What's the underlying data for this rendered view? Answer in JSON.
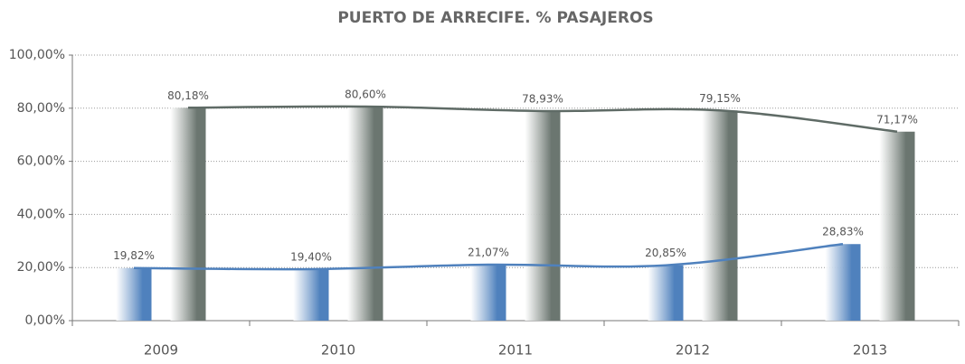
{
  "chart_data": {
    "type": "bar",
    "title": "PUERTO DE ARRECIFE. % PASAJEROS",
    "categories": [
      "2009",
      "2010",
      "2011",
      "2012",
      "2013"
    ],
    "series": [
      {
        "color": "#4f81bd",
        "values": [
          19.82,
          19.4,
          21.07,
          20.85,
          28.83
        ],
        "value_labels": [
          "19,82%",
          "19,40%",
          "21,07%",
          "20,85%",
          "28,83%"
        ]
      },
      {
        "color": "#6b7670",
        "values": [
          80.18,
          80.6,
          78.93,
          79.15,
          71.17
        ],
        "value_labels": [
          "80,18%",
          "80,60%",
          "78,93%",
          "79,15%",
          "71,17%"
        ]
      }
    ],
    "ylim": [
      0,
      100
    ],
    "yticks": [
      {
        "value": 0,
        "label": "0,00%"
      },
      {
        "value": 20,
        "label": "20,00%"
      },
      {
        "value": 40,
        "label": "40,00%"
      },
      {
        "value": 60,
        "label": "60,00%"
      },
      {
        "value": 80,
        "label": "80,00%"
      },
      {
        "value": 100,
        "label": "100,00%"
      }
    ],
    "grid": true
  }
}
